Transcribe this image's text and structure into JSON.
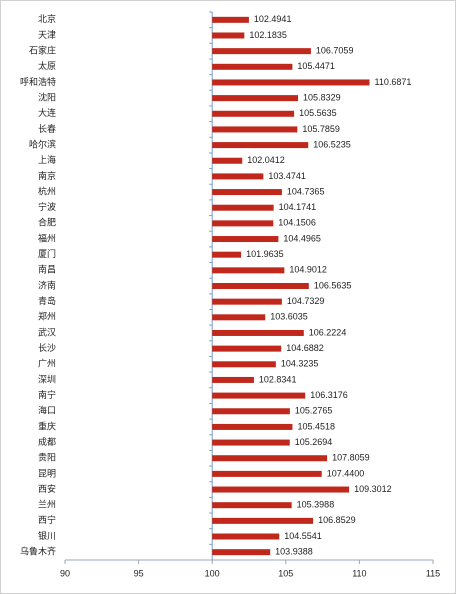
{
  "chart_data": {
    "type": "bar",
    "orientation": "horizontal",
    "categories": [
      "北京",
      "天津",
      "石家庄",
      "太原",
      "呼和浩特",
      "沈阳",
      "大连",
      "长春",
      "哈尔滨",
      "上海",
      "南京",
      "杭州",
      "宁波",
      "合肥",
      "福州",
      "厦门",
      "南昌",
      "济南",
      "青岛",
      "郑州",
      "武汉",
      "长沙",
      "广州",
      "深圳",
      "南宁",
      "海口",
      "重庆",
      "成都",
      "贵阳",
      "昆明",
      "西安",
      "兰州",
      "西宁",
      "银川",
      "乌鲁木齐"
    ],
    "values": [
      102.4941,
      102.1835,
      106.7059,
      105.4471,
      110.6871,
      105.8329,
      105.5635,
      105.7859,
      106.5235,
      102.0412,
      103.4741,
      104.7365,
      104.1741,
      104.1506,
      104.4965,
      101.9635,
      104.9012,
      106.5635,
      104.7329,
      103.6035,
      106.2224,
      104.6882,
      104.3235,
      102.8341,
      106.3176,
      105.2765,
      105.4518,
      105.2694,
      107.8059,
      107.44,
      109.3012,
      105.3988,
      106.8529,
      104.5541,
      103.9388
    ],
    "value_labels": [
      "102.4941",
      "102.1835",
      "106.7059",
      "105.4471",
      "110.6871",
      "105.8329",
      "105.5635",
      "105.7859",
      "106.5235",
      "102.0412",
      "103.4741",
      "104.7365",
      "104.1741",
      "104.1506",
      "104.4965",
      "101.9635",
      "104.9012",
      "106.5635",
      "104.7329",
      "103.6035",
      "106.2224",
      "104.6882",
      "104.3235",
      "102.8341",
      "106.3176",
      "105.2765",
      "105.4518",
      "105.2694",
      "107.8059",
      "107.4400",
      "109.3012",
      "105.3988",
      "106.8529",
      "104.5541",
      "103.9388"
    ],
    "color": "#c0281c",
    "xlim": [
      90,
      115
    ],
    "xticks": [
      90,
      95,
      100,
      105,
      110,
      115
    ],
    "base": 100
  }
}
